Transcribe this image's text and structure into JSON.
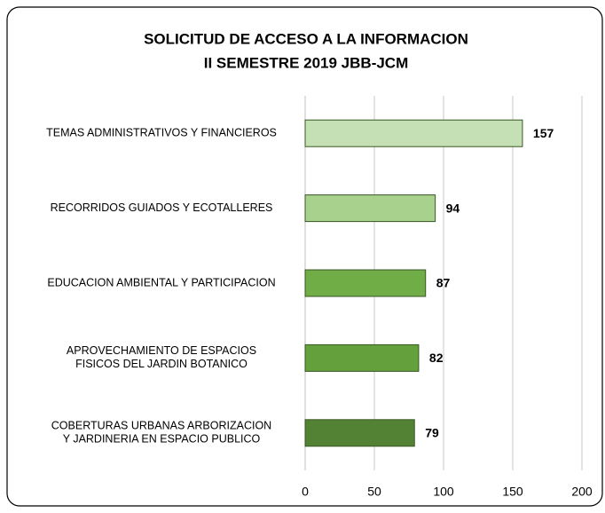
{
  "chart_data": {
    "type": "bar",
    "orientation": "horizontal",
    "title": [
      "SOLICITUD DE ACCESO A LA INFORMACION",
      "II SEMESTRE 2019 JBB-JCM"
    ],
    "categories": [
      [
        "TEMAS ADMINISTRATIVOS Y FINANCIEROS"
      ],
      [
        "RECORRIDOS GUIADOS Y ECOTALLERES"
      ],
      [
        "EDUCACION AMBIENTAL Y PARTICIPACION"
      ],
      [
        "APROVECHAMIENTO DE ESPACIOS",
        "FISICOS DEL JARDIN BOTANICO"
      ],
      [
        "COBERTURAS URBANAS  ARBORIZACION",
        "Y JARDINERIA EN ESPACIO PUBLICO"
      ]
    ],
    "values": [
      157,
      94,
      87,
      82,
      79
    ],
    "colors": [
      "#c5e0b4",
      "#a9d18e",
      "#70ad47",
      "#64a03c",
      "#548235"
    ],
    "xlim": [
      0,
      200
    ],
    "xticks": [
      0,
      50,
      100,
      150,
      200
    ],
    "grid": true
  }
}
